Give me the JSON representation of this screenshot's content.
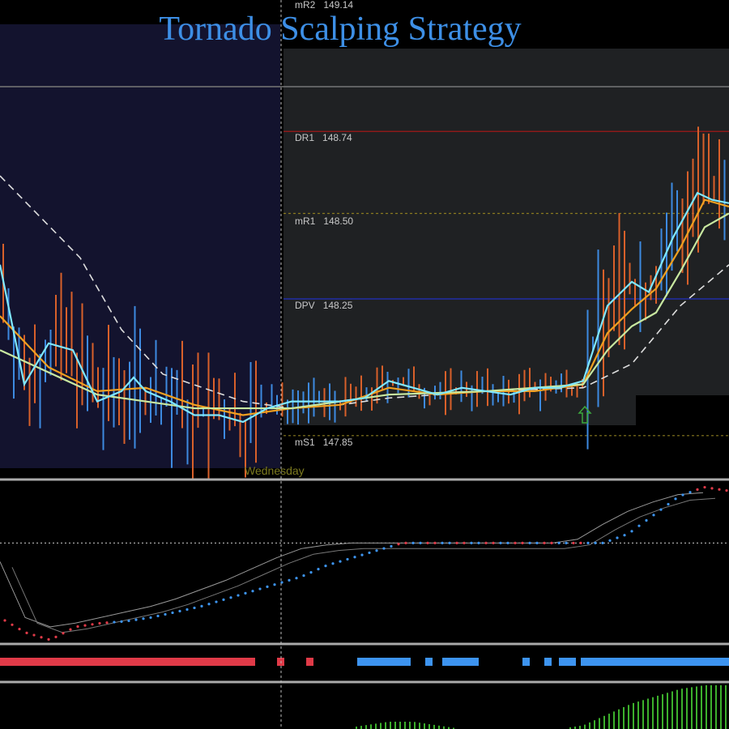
{
  "title": "Tornado Scalping Strategy",
  "day_label": "Wednesday",
  "levels": [
    {
      "name": "mR2",
      "value": "149.14",
      "price": 149.14,
      "color": "#555555"
    },
    {
      "name": "DR1",
      "value": "148.74",
      "price": 148.74,
      "color": "#a01818"
    },
    {
      "name": "mR1",
      "value": "148.50",
      "price": 148.5,
      "color": "#8a7a20"
    },
    {
      "name": "DPV",
      "value": "148.25",
      "price": 148.25,
      "color": "#2030c0"
    },
    {
      "name": "mS1",
      "value": "147.85",
      "price": 147.85,
      "color": "#8a7a20"
    }
  ],
  "chart_data": {
    "type": "line",
    "title": "Tornado Scalping Strategy",
    "x_labels": [
      "Wednesday"
    ],
    "series": [
      {
        "color": "#7fe8ff",
        "x": [
          0,
          1,
          2,
          3,
          4,
          5,
          5.5,
          6,
          7,
          8,
          9,
          10,
          11,
          12,
          13,
          14,
          15,
          16,
          17,
          18,
          19,
          20,
          21,
          22,
          23,
          24,
          25,
          26,
          26.7,
          27.7,
          28.7,
          29.3,
          30
        ],
        "values": [
          148.35,
          148.0,
          148.12,
          148.1,
          147.95,
          147.98,
          148.02,
          147.98,
          147.95,
          147.91,
          147.91,
          147.89,
          147.93,
          147.95,
          147.95,
          147.95,
          147.96,
          148.01,
          147.99,
          147.97,
          147.99,
          147.98,
          147.97,
          147.99,
          147.99,
          148.01,
          148.23,
          148.3,
          148.27,
          148.43,
          148.56,
          148.54,
          148.53
        ]
      },
      {
        "color": "#f0a020",
        "x": [
          0,
          2,
          4,
          6,
          8,
          10,
          12,
          14,
          16,
          18,
          20,
          22,
          24,
          25,
          26,
          27,
          28,
          29,
          30
        ],
        "values": [
          148.2,
          148.05,
          147.98,
          147.99,
          147.94,
          147.91,
          147.93,
          147.94,
          147.99,
          147.97,
          147.98,
          147.98,
          148.0,
          148.15,
          148.22,
          148.28,
          148.4,
          148.54,
          148.52
        ]
      },
      {
        "color": "#c8e8a0",
        "x": [
          0,
          4,
          8,
          12,
          16,
          20,
          24,
          25,
          26,
          27,
          28,
          29,
          30
        ],
        "values": [
          148.1,
          147.97,
          147.93,
          147.93,
          147.97,
          147.98,
          148.0,
          148.1,
          148.17,
          148.21,
          148.33,
          148.46,
          148.5
        ]
      },
      {
        "color": "#dddddd",
        "dashed": true,
        "x": [
          0,
          3.3,
          5,
          6.7,
          10,
          12,
          14,
          16,
          20,
          24,
          26,
          28,
          30
        ],
        "values": [
          148.61,
          148.37,
          148.16,
          148.03,
          147.95,
          147.93,
          147.94,
          147.96,
          147.98,
          147.99,
          148.06,
          148.23,
          148.35
        ]
      }
    ],
    "oscillator": {
      "dots": [
        30,
        22,
        18,
        25,
        27,
        28,
        30,
        33,
        36,
        40,
        44,
        48,
        52,
        58,
        62,
        66,
        70,
        70,
        70,
        70,
        70,
        70,
        70,
        70,
        70,
        75,
        85,
        95,
        100,
        98
      ],
      "line1": [
        60,
        30,
        25,
        27,
        30,
        33,
        36,
        40,
        45,
        50,
        56,
        62,
        67,
        69,
        70,
        70,
        70,
        70,
        70,
        70,
        70,
        70,
        70,
        72,
        80,
        87,
        92,
        96,
        97
      ],
      "zero_level": 70
    },
    "signal_bar": [
      {
        "from": 0,
        "to": 10.5,
        "color": "#e03a48"
      },
      {
        "from": 11.4,
        "to": 11.7,
        "color": "#e03a48"
      },
      {
        "from": 12.6,
        "to": 12.9,
        "color": "#e03a48"
      },
      {
        "from": 14.7,
        "to": 16.9,
        "color": "#3d94f0"
      },
      {
        "from": 17.5,
        "to": 17.8,
        "color": "#3d94f0"
      },
      {
        "from": 18.2,
        "to": 19.7,
        "color": "#3d94f0"
      },
      {
        "from": 21.5,
        "to": 21.8,
        "color": "#3d94f0"
      },
      {
        "from": 22.4,
        "to": 22.7,
        "color": "#3d94f0"
      },
      {
        "from": 23.0,
        "to": 23.7,
        "color": "#3d94f0"
      },
      {
        "from": 23.9,
        "to": 30,
        "color": "#3d94f0"
      }
    ],
    "histogram": [
      0,
      0,
      0,
      0,
      0,
      0,
      0,
      0,
      0,
      0,
      0,
      0,
      0,
      0,
      0,
      1,
      2,
      2,
      1,
      0,
      0,
      0,
      0,
      0,
      1,
      4,
      7,
      9,
      11,
      12
    ]
  }
}
